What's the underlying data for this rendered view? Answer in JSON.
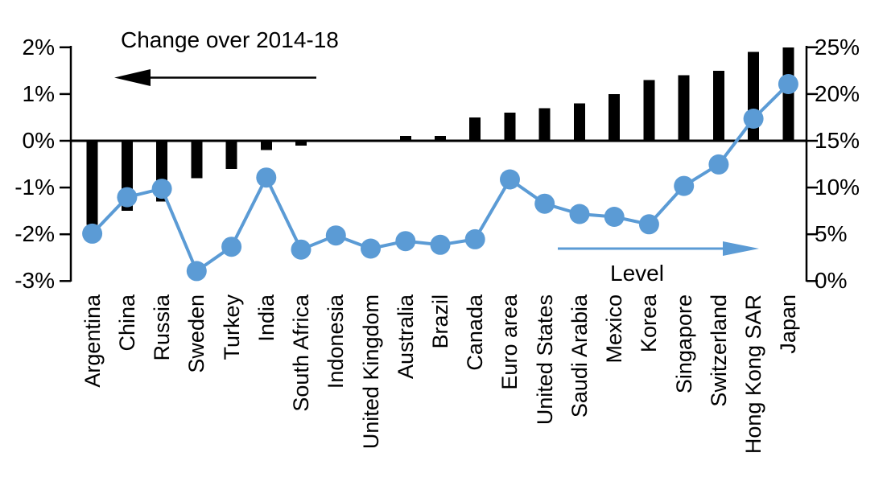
{
  "chart": {
    "left_series_title": "Change over 2014-18",
    "right_series_title": "Level",
    "colors": {
      "bar": "#000000",
      "line": "#5b9bd5",
      "axis": "#000000",
      "background": "#ffffff"
    }
  },
  "chart_data": {
    "type": "bar",
    "subtype": "dual-axis combo: bars (left axis) + line with circle markers (right axis)",
    "title": "",
    "categories": [
      "Argentina",
      "China",
      "Russia",
      "Sweden",
      "Turkey",
      "India",
      "South Africa",
      "Indonesia",
      "United Kingdom",
      "Australia",
      "Brazil",
      "Canada",
      "Euro area",
      "United States",
      "Saudi Arabia",
      "Mexico",
      "Korea",
      "Singapore",
      "Switzerland",
      "Hong Kong SAR",
      "Japan"
    ],
    "series": [
      {
        "name": "Change over 2014-18",
        "type": "bar",
        "axis": "left",
        "color": "#000000",
        "unit": "percentage points",
        "values": [
          -1.8,
          -1.5,
          -1.3,
          -0.8,
          -0.6,
          -0.2,
          -0.1,
          0.0,
          0.0,
          0.1,
          0.1,
          0.5,
          0.6,
          0.7,
          0.8,
          1.0,
          1.3,
          1.4,
          1.5,
          1.9,
          2.0
        ]
      },
      {
        "name": "Level",
        "type": "line",
        "axis": "right",
        "color": "#5b9bd5",
        "unit": "%",
        "values": [
          5.0,
          8.9,
          9.8,
          1.0,
          3.6,
          11.0,
          3.3,
          4.8,
          3.4,
          4.2,
          3.8,
          4.4,
          10.8,
          8.2,
          7.1,
          6.8,
          6.0,
          10.1,
          12.4,
          17.3,
          21.0
        ]
      }
    ],
    "left_axis": {
      "min": -3,
      "max": 2,
      "tick_labels": [
        "2%",
        "1%",
        "0%",
        "-1%",
        "-2%",
        "-3%"
      ],
      "tick_values": [
        2,
        1,
        0,
        -1,
        -2,
        -3
      ]
    },
    "right_axis": {
      "min": 0,
      "max": 25,
      "tick_labels": [
        "25%",
        "20%",
        "15%",
        "10%",
        "5%",
        "0%"
      ],
      "tick_values": [
        25,
        20,
        15,
        10,
        5,
        0
      ]
    },
    "annotations": [
      {
        "text": "Change over 2014-18",
        "arrow_direction": "left",
        "arrow_color": "#000000",
        "refers_to": "bars / left axis"
      },
      {
        "text": "Level",
        "arrow_direction": "right",
        "arrow_color": "#5b9bd5",
        "refers_to": "line / right axis"
      }
    ],
    "grid": "off",
    "legend_position": "in-plot annotations with arrows",
    "baseline": "0% left axis aligns with 15% right axis"
  }
}
